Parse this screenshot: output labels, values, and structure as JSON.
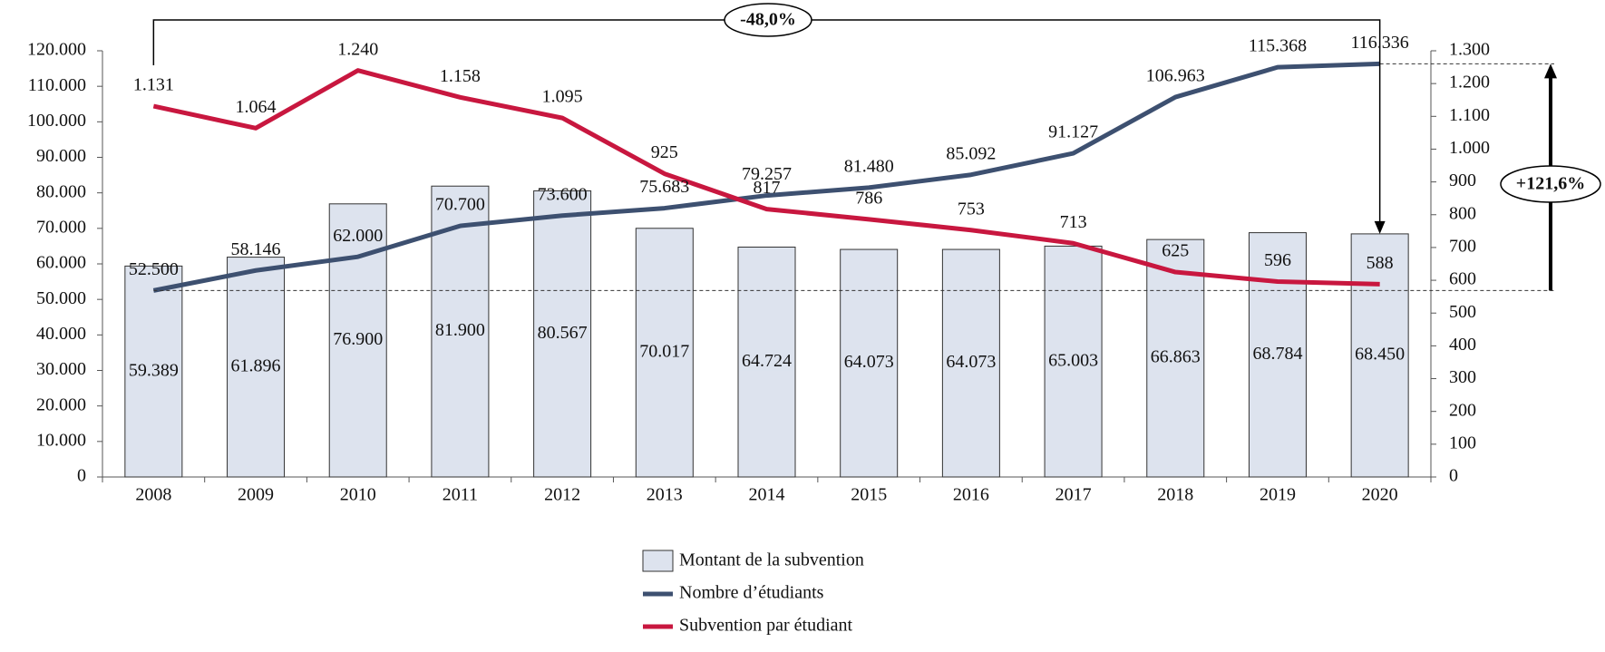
{
  "chart_data": {
    "type": "bar",
    "categories": [
      "2008",
      "2009",
      "2010",
      "2011",
      "2012",
      "2013",
      "2014",
      "2015",
      "2016",
      "2017",
      "2018",
      "2019",
      "2020"
    ],
    "series": [
      {
        "name": "Montant de la subvention",
        "type": "bar",
        "color": "#dde3ee",
        "values": [
          59389,
          61896,
          76900,
          81900,
          80567,
          70017,
          64724,
          64073,
          64073,
          65003,
          66863,
          68784,
          68450
        ],
        "value_labels": [
          "59.389",
          "61.896",
          "76.900",
          "81.900",
          "80.567",
          "70.017",
          "64.724",
          "64.073",
          "64.073",
          "65.003",
          "66.863",
          "68.784",
          "68.450"
        ]
      },
      {
        "name": "Nombre d’étudiants",
        "type": "line",
        "color": "#3d5070",
        "values": [
          52500,
          58146,
          62000,
          70700,
          73600,
          75683,
          79257,
          81480,
          85092,
          91127,
          106963,
          115368,
          116336
        ],
        "value_labels": [
          "52.500",
          "58.146",
          "62.000",
          "70.700",
          "73.600",
          "75.683",
          "79.257",
          "81.480",
          "85.092",
          "91.127",
          "106.963",
          "115.368",
          "116.336"
        ]
      },
      {
        "name": "Subvention par étudiant",
        "type": "line",
        "axis": "y2",
        "color": "#c8173f",
        "values": [
          1131,
          1064,
          1240,
          1158,
          1095,
          925,
          817,
          786,
          753,
          713,
          625,
          596,
          588
        ],
        "value_labels": [
          "1.131",
          "1.064",
          "1.240",
          "1.158",
          "1.095",
          "925",
          "817",
          "786",
          "753",
          "713",
          "625",
          "596",
          "588"
        ]
      }
    ],
    "ylim": [
      0,
      120000
    ],
    "yticks": [
      0,
      {
        "value": 10000,
        "label": "10.000"
      },
      {
        "value": 20000,
        "label": "20.000"
      },
      {
        "value": 30000,
        "label": "30.000"
      },
      {
        "value": 40000,
        "label": "40.000"
      },
      {
        "value": 50000,
        "label": "50.000"
      },
      {
        "value": 60000,
        "label": "60.000"
      },
      {
        "value": 70000,
        "label": "70.000"
      },
      {
        "value": 80000,
        "label": "80.000"
      },
      {
        "value": 90000,
        "label": "90.000"
      },
      {
        "value": 100000,
        "label": "100.000"
      },
      {
        "value": 110000,
        "label": "110.000"
      },
      {
        "value": 120000,
        "label": "120.000"
      }
    ],
    "y2lim": [
      0,
      1300
    ],
    "y2ticks": [
      0,
      100,
      200,
      300,
      400,
      500,
      600,
      700,
      800,
      900,
      {
        "value": 1000,
        "label": "1.000"
      },
      {
        "value": 1100,
        "label": "1.100"
      },
      {
        "value": 1200,
        "label": "1.200"
      },
      {
        "value": 1300,
        "label": "1.300"
      }
    ],
    "annotations": [
      "-48,0%",
      "+121,6%"
    ]
  }
}
